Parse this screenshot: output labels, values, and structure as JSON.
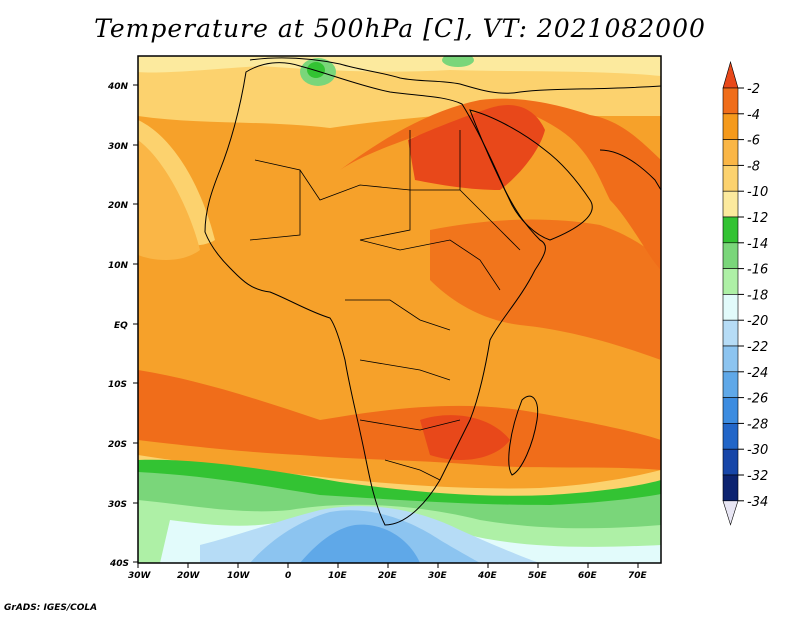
{
  "title": "Temperature at 500hPa [C], VT: 2021082000",
  "credit": "GrADS: IGES/COLA",
  "axes": {
    "longitude_ticks": [
      "30W",
      "20W",
      "10W",
      "0",
      "10E",
      "20E",
      "30E",
      "40E",
      "50E",
      "60E",
      "70E"
    ],
    "latitude_ticks": [
      "40N",
      "30N",
      "20N",
      "10N",
      "EQ",
      "10S",
      "20S",
      "30S",
      "40S"
    ]
  },
  "colorbar": {
    "labels": [
      "-2",
      "-4",
      "-6",
      "-8",
      "-10",
      "-12",
      "-14",
      "-16",
      "-18",
      "-20",
      "-22",
      "-24",
      "-26",
      "-28",
      "-30",
      "-32",
      "-34"
    ],
    "colors": [
      "#e8481a",
      "#f06d1a",
      "#f59a1c",
      "#fab646",
      "#fcd26e",
      "#fcea9e",
      "#33c333",
      "#7ad67a",
      "#aef0a6",
      "#e2fbfb",
      "#b6dcf6",
      "#8cc4f0",
      "#5fa8e8",
      "#3c8ce0",
      "#2266c8",
      "#1746a8",
      "#0c2370"
    ]
  },
  "map_data": {
    "domain": {
      "lon": [
        -30,
        76
      ],
      "lat": [
        -40,
        45
      ]
    },
    "variable": "Temperature at 500hPa",
    "units": "C",
    "valid_time": "2021082000"
  }
}
